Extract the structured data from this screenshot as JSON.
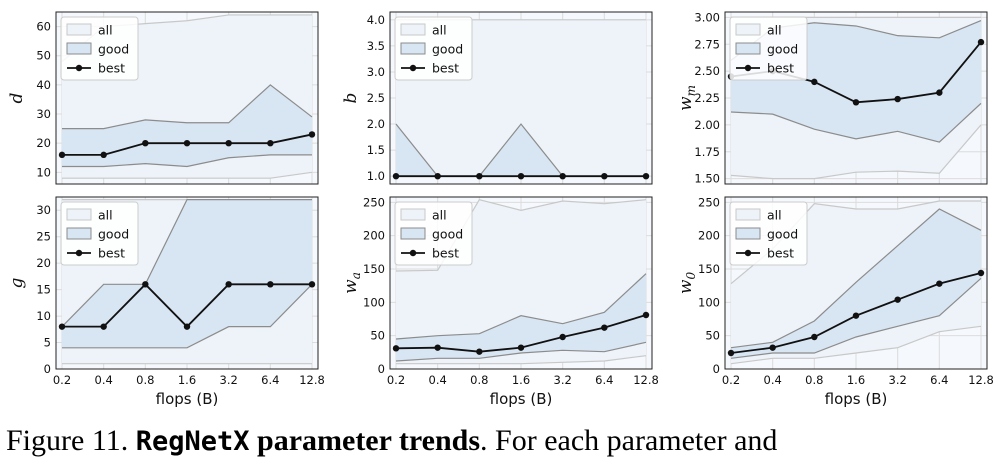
{
  "caption": {
    "prefix": "Figure 11.",
    "title_code": "RegNetX",
    "title_rest": "parameter trends",
    "text": ". For each parameter and"
  },
  "legend": [
    "all",
    "good",
    "best"
  ],
  "colors": {
    "all_fill": "#eef3f9",
    "all_edge": "#c8c8c8",
    "good_fill": "#d8e5f3",
    "good_edge": "#8c8c8c",
    "best_line": "#111111",
    "grid": "#dcdcdc",
    "axes_bg": "#f5f8fc"
  },
  "chart_data": [
    {
      "type": "area",
      "ylabel": "d",
      "xlabel": "",
      "x": [
        0.2,
        0.4,
        0.8,
        1.6,
        3.2,
        6.4,
        12.8
      ],
      "x_tick_labels": [
        "0.2",
        "0.4",
        "0.8",
        "1.6",
        "3.2",
        "6.4",
        "12.8"
      ],
      "yticks": [
        10,
        20,
        30,
        40,
        50,
        60
      ],
      "ylim": [
        6,
        65
      ],
      "all_min": [
        8,
        8,
        8,
        8,
        8,
        8,
        10
      ],
      "all_max": [
        48,
        60,
        61,
        62,
        64,
        64,
        64
      ],
      "good_min": [
        12,
        12,
        13,
        12,
        15,
        16,
        16
      ],
      "good_max": [
        25,
        25,
        28,
        27,
        27,
        40,
        29
      ],
      "best": [
        16,
        16,
        20,
        20,
        20,
        20,
        23
      ],
      "legend_position": "top-left"
    },
    {
      "type": "area",
      "ylabel": "b",
      "xlabel": "",
      "x": [
        0.2,
        0.4,
        0.8,
        1.6,
        3.2,
        6.4,
        12.8
      ],
      "x_tick_labels": [
        "0.2",
        "0.4",
        "0.8",
        "1.6",
        "3.2",
        "6.4",
        "12.8"
      ],
      "yticks": [
        1.0,
        1.5,
        2.0,
        2.5,
        3.0,
        3.5,
        4.0
      ],
      "ytick_labels": [
        "1.0",
        "1.5",
        "2.0",
        "2.5",
        "3.0",
        "3.5",
        "4.0"
      ],
      "ylim": [
        0.85,
        4.15
      ],
      "all_min": [
        1,
        1,
        1,
        1,
        1,
        1,
        1
      ],
      "all_max": [
        4,
        4,
        4,
        4,
        4,
        4,
        4
      ],
      "good_min": [
        1,
        1,
        1,
        1,
        1,
        1,
        1
      ],
      "good_max": [
        2,
        1,
        1,
        2,
        1,
        1,
        1
      ],
      "best": [
        1,
        1,
        1,
        1,
        1,
        1,
        1
      ],
      "legend_position": "top-left"
    },
    {
      "type": "area",
      "ylabel": "w_m",
      "xlabel": "",
      "x": [
        0.2,
        0.4,
        0.8,
        1.6,
        3.2,
        6.4,
        12.8
      ],
      "x_tick_labels": [
        "0.2",
        "0.4",
        "0.8",
        "1.6",
        "3.2",
        "6.4",
        "12.8"
      ],
      "yticks": [
        1.5,
        1.75,
        2.0,
        2.25,
        2.5,
        2.75,
        3.0
      ],
      "ytick_labels": [
        "1.50",
        "1.75",
        "2.00",
        "2.25",
        "2.50",
        "2.75",
        "3.00"
      ],
      "ylim": [
        1.45,
        3.05
      ],
      "all_min": [
        1.53,
        1.5,
        1.5,
        1.56,
        1.57,
        1.55,
        2.0
      ],
      "all_max": [
        3.0,
        3.0,
        3.0,
        3.0,
        3.0,
        3.0,
        3.0
      ],
      "good_min": [
        2.12,
        2.1,
        1.96,
        1.87,
        1.94,
        1.84,
        2.2
      ],
      "good_max": [
        2.6,
        2.9,
        2.95,
        2.92,
        2.83,
        2.81,
        2.97
      ],
      "best": [
        2.45,
        2.5,
        2.4,
        2.21,
        2.24,
        2.3,
        2.77
      ],
      "legend_position": "top-left"
    },
    {
      "type": "area",
      "ylabel": "g",
      "xlabel": "flops (B)",
      "x": [
        0.2,
        0.4,
        0.8,
        1.6,
        3.2,
        6.4,
        12.8
      ],
      "x_tick_labels": [
        "0.2",
        "0.4",
        "0.8",
        "1.6",
        "3.2",
        "6.4",
        "12.8"
      ],
      "yticks": [
        0,
        5,
        10,
        15,
        20,
        25,
        30
      ],
      "ylim": [
        0,
        32.5
      ],
      "all_min": [
        1,
        1,
        1,
        1,
        1,
        1,
        1
      ],
      "all_max": [
        32,
        32,
        32,
        32,
        32,
        32,
        32
      ],
      "good_min": [
        4,
        4,
        4,
        4,
        8,
        8,
        16
      ],
      "good_max": [
        8,
        16,
        16,
        32,
        32,
        32,
        32
      ],
      "best": [
        8,
        8,
        16,
        8,
        16,
        16,
        16
      ],
      "legend_position": "top-left"
    },
    {
      "type": "area",
      "ylabel": "w_a",
      "xlabel": "flops (B)",
      "x": [
        0.2,
        0.4,
        0.8,
        1.6,
        3.2,
        6.4,
        12.8
      ],
      "x_tick_labels": [
        "0.2",
        "0.4",
        "0.8",
        "1.6",
        "3.2",
        "6.4",
        "12.8"
      ],
      "yticks": [
        0,
        50,
        100,
        150,
        200,
        250
      ],
      "ylim": [
        0,
        258
      ],
      "all_min": [
        8,
        8,
        8,
        8,
        10,
        12,
        20
      ],
      "all_max": [
        147,
        148,
        254,
        238,
        252,
        248,
        254
      ],
      "good_min": [
        12,
        16,
        16,
        24,
        28,
        26,
        40
      ],
      "good_max": [
        45,
        50,
        53,
        80,
        68,
        85,
        143
      ],
      "best": [
        31,
        32,
        26,
        32,
        48,
        62,
        81
      ],
      "legend_position": "top-left"
    },
    {
      "type": "area",
      "ylabel": "w_0",
      "xlabel": "flops (B)",
      "x": [
        0.2,
        0.4,
        0.8,
        1.6,
        3.2,
        6.4,
        12.8
      ],
      "x_tick_labels": [
        "0.2",
        "0.4",
        "0.8",
        "1.6",
        "3.2",
        "6.4",
        "12.8"
      ],
      "yticks": [
        0,
        50,
        100,
        150,
        200,
        250
      ],
      "ylim": [
        0,
        258
      ],
      "all_min": [
        8,
        16,
        16,
        24,
        32,
        56,
        64
      ],
      "all_max": [
        128,
        180,
        248,
        240,
        240,
        252,
        252
      ],
      "good_min": [
        16,
        24,
        24,
        48,
        64,
        80,
        136
      ],
      "good_max": [
        32,
        40,
        72,
        130,
        185,
        240,
        208
      ],
      "best": [
        24,
        32,
        48,
        80,
        104,
        128,
        144
      ],
      "legend_position": "top-left"
    }
  ]
}
